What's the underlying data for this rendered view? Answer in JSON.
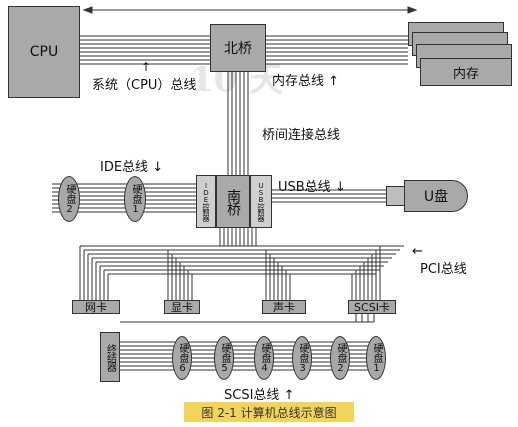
{
  "labels": {
    "cpu": "CPU",
    "north_bridge": "北桥",
    "memory": "内存",
    "system_bus": "系统（CPU）总线",
    "memory_bus": "内存总线",
    "bridge_bus": "桥间连接总线",
    "ide_bus": "IDE总线",
    "ide_controller": "IDE控制器",
    "south_bridge": "南桥",
    "usb_controller": "USB控制器",
    "usb_bus": "USB总线",
    "u_disk": "U盘",
    "pci_bus": "PCI总线",
    "network_card": "网卡",
    "graphics_card": "显卡",
    "sound_card": "声卡",
    "scsi_card": "SCSI卡",
    "terminator": "终结器",
    "scsi_bus": "SCSI总线",
    "caption": "图 2-1   计算机总线示意图"
  },
  "ide_disks": [
    "硬盘2",
    "硬盘1"
  ],
  "scsi_disks": [
    "硬盘6",
    "硬盘5",
    "硬盘4",
    "硬盘3",
    "硬盘2",
    "硬盘1"
  ],
  "arrows": {
    "up": "↑",
    "down": "↓",
    "left": "←"
  },
  "colors": {
    "box": "#a9a9a9",
    "disk": "#a8a8a8",
    "caption_bg": "#f3d45a",
    "line": "#333333"
  }
}
